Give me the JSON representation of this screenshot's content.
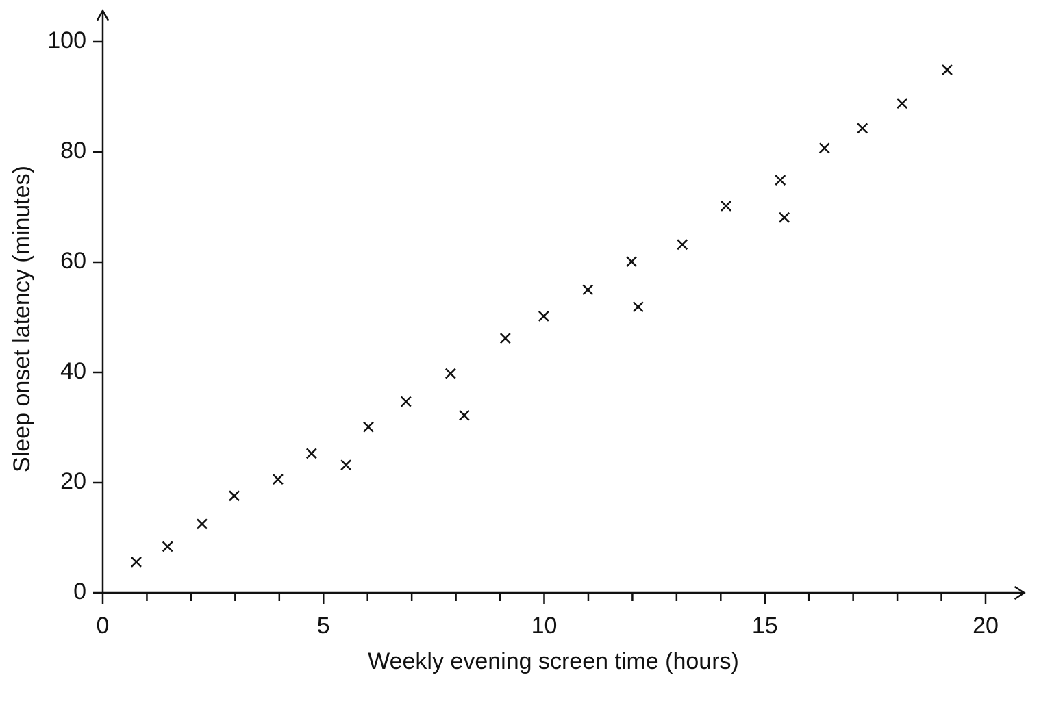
{
  "chart_data": {
    "type": "scatter",
    "x_label": "Weekly evening screen time (hours)",
    "y_label": "Sleep onset latency (minutes)",
    "x": [
      0.76,
      1.47,
      2.25,
      2.98,
      3.97,
      4.73,
      5.51,
      6.02,
      6.87,
      7.88,
      8.19,
      9.12,
      9.99,
      10.99,
      11.98,
      12.13,
      13.13,
      14.12,
      15.35,
      15.44,
      16.35,
      17.21,
      18.11,
      19.13
    ],
    "values": [
      5.6,
      8.4,
      12.5,
      17.6,
      20.6,
      25.3,
      23.2,
      30.1,
      34.7,
      39.8,
      32.2,
      46.2,
      50.2,
      55.0,
      60.1,
      51.9,
      63.2,
      70.2,
      74.9,
      68.1,
      80.7,
      84.3,
      88.8,
      94.9
    ],
    "color": "#111111",
    "marker": "x",
    "xlim": [
      0,
      21
    ],
    "ylim": [
      0,
      106
    ],
    "xticks": [
      0,
      5,
      10,
      15,
      20
    ],
    "xminorticks": [
      1,
      2,
      3,
      4,
      6,
      7,
      8,
      9,
      11,
      12,
      13,
      14,
      16,
      17,
      18,
      19
    ],
    "yticks": [
      0,
      20,
      40,
      60,
      80,
      100
    ],
    "grid": false
  }
}
